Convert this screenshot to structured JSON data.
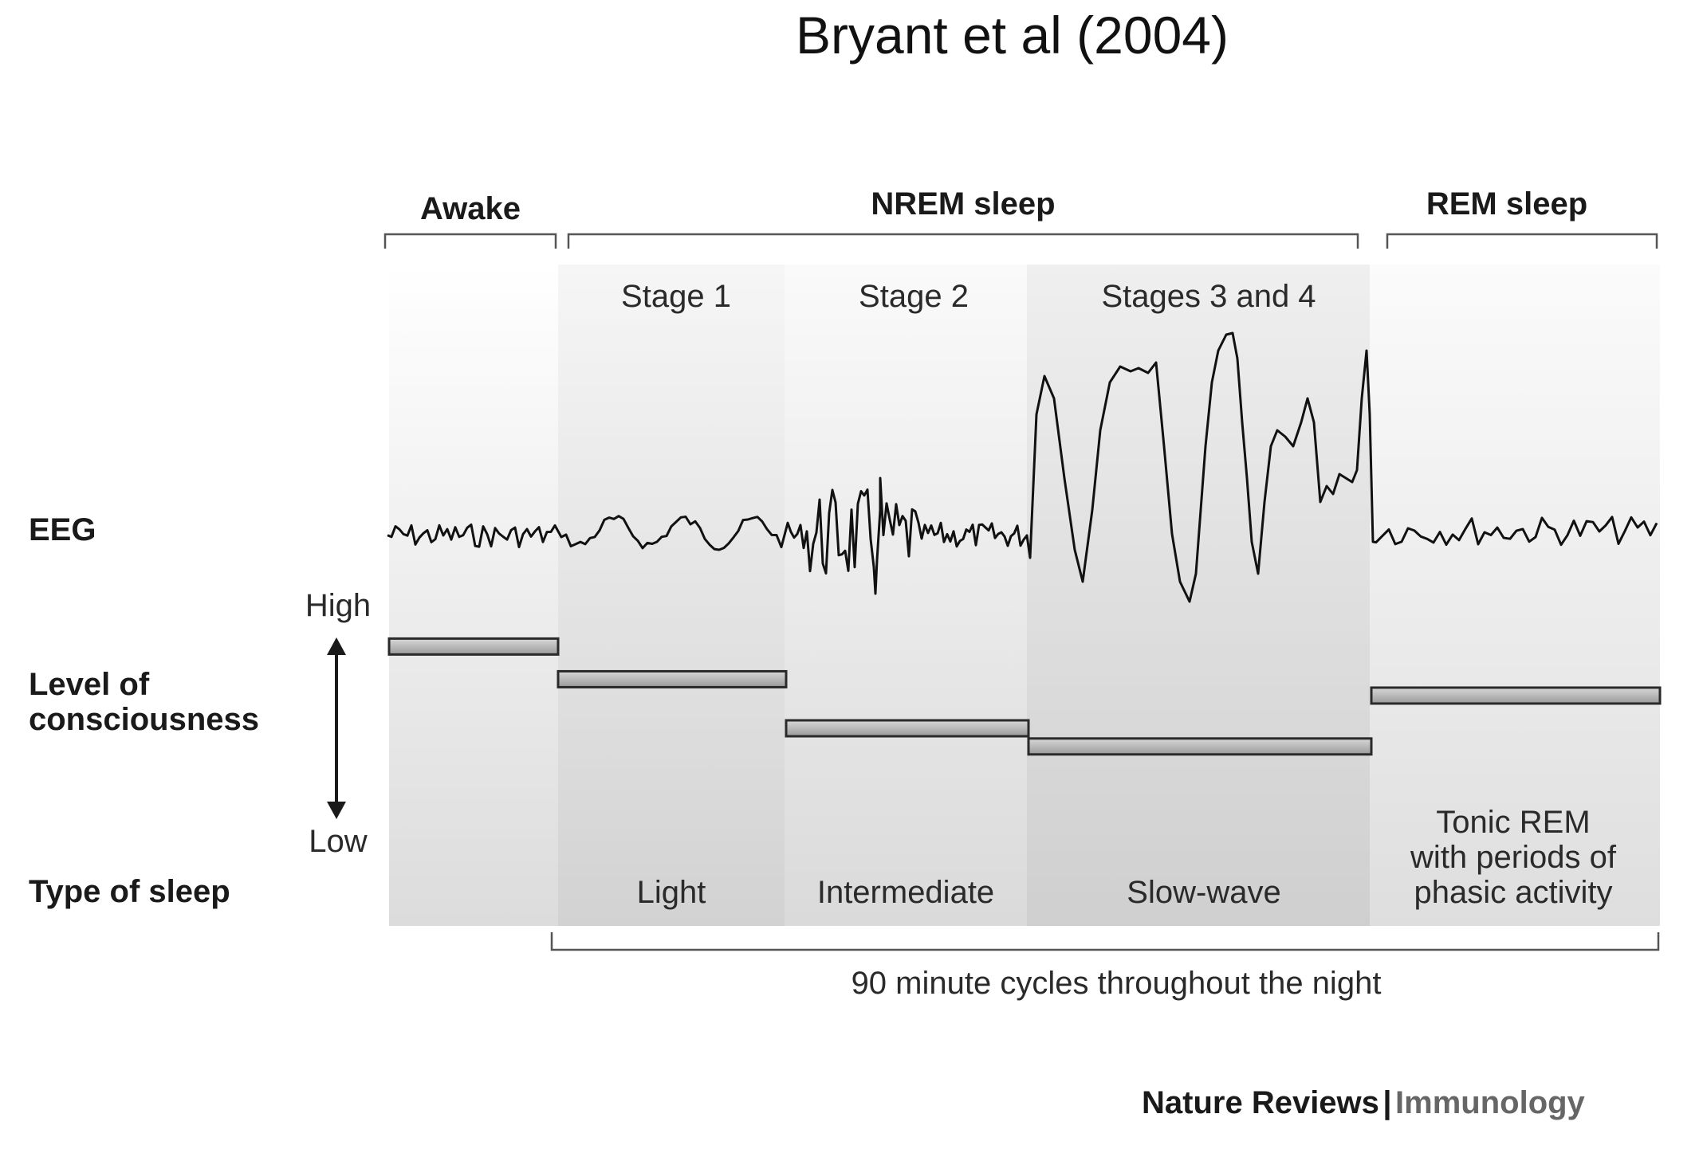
{
  "title": "Bryant et al (2004)",
  "groups": {
    "awake": "Awake",
    "nrem": "NREM sleep",
    "rem": "REM sleep"
  },
  "stages": {
    "stage1": "Stage 1",
    "stage2": "Stage 2",
    "stage34": "Stages 3 and 4"
  },
  "rows": {
    "eeg": "EEG",
    "consciousness_line1": "Level of",
    "consciousness_line2": "consciousness",
    "type_of_sleep": "Type of sleep"
  },
  "axis": {
    "high": "High",
    "low": "Low"
  },
  "sleep_types": {
    "light": "Light",
    "intermediate": "Intermediate",
    "slow_wave": "Slow-wave",
    "rem_line1": "Tonic REM",
    "rem_line2": "with periods of",
    "rem_line3": "phasic activity"
  },
  "cycle_note": "90 minute cycles throughout the night",
  "footer": {
    "journal": "Nature Reviews",
    "separator": "|",
    "section": "Immunology"
  },
  "consciousness_levels": {
    "awake": 0.95,
    "stage1": 0.77,
    "stage2": 0.5,
    "stage34": 0.4,
    "rem": 0.68
  }
}
